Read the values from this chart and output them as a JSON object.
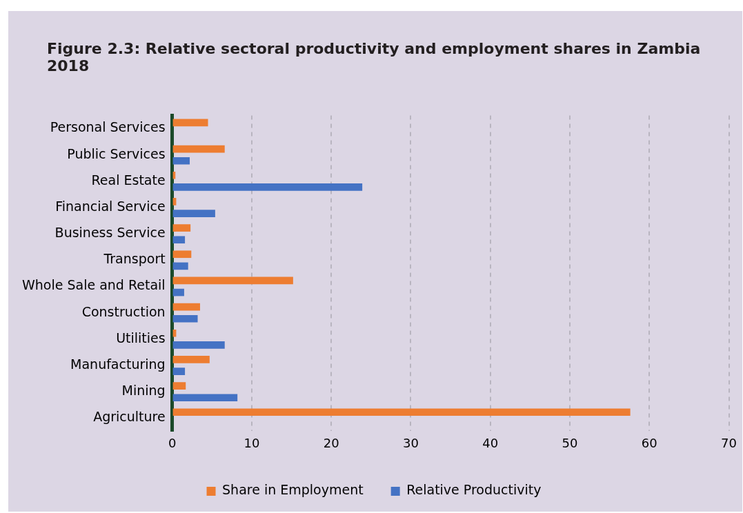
{
  "chart_data": {
    "type": "bar",
    "orientation": "horizontal",
    "title": "Figure 2.3: Relative sectoral productivity and employment shares in Zambia 2018",
    "categories": [
      "Personal Services",
      "Public Services",
      "Real Estate",
      "Financial Service",
      "Business Service",
      "Transport",
      "Whole Sale and Retail",
      "Construction",
      "Utilities",
      "Manufacturing",
      "Mining",
      "Agriculture"
    ],
    "series": [
      {
        "name": "Share in Employment",
        "color": "#ed7d31",
        "values": [
          4.5,
          6.6,
          0.4,
          0.5,
          2.3,
          2.4,
          15.2,
          3.5,
          0.5,
          4.7,
          1.7,
          57.6
        ]
      },
      {
        "name": "Relative Productivity",
        "color": "#4472c4",
        "values": [
          null,
          2.2,
          23.9,
          5.4,
          1.6,
          2.0,
          1.5,
          3.2,
          6.6,
          1.6,
          8.2,
          null
        ]
      }
    ],
    "xlim": [
      0,
      70
    ],
    "xticks": [
      0,
      10,
      20,
      30,
      40,
      50,
      60,
      70
    ],
    "grid": "x",
    "legend": "bottom"
  }
}
